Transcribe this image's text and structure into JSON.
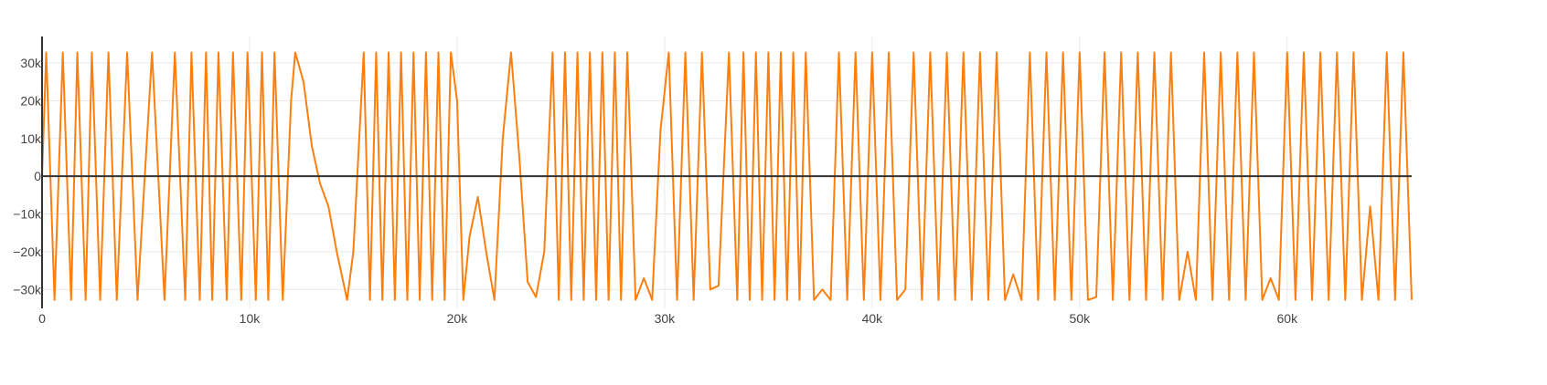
{
  "chart_data": {
    "type": "line",
    "title": "",
    "xlabel": "",
    "ylabel": "",
    "xlim": [
      0,
      66000
    ],
    "ylim": [
      -35000,
      37000
    ],
    "grid": true,
    "legend": "none",
    "x_ticks": [
      {
        "value": 0,
        "label": "0"
      },
      {
        "value": 10000,
        "label": "10k"
      },
      {
        "value": 20000,
        "label": "20k"
      },
      {
        "value": 30000,
        "label": "30k"
      },
      {
        "value": 40000,
        "label": "40k"
      },
      {
        "value": 50000,
        "label": "50k"
      },
      {
        "value": 60000,
        "label": "60k"
      }
    ],
    "y_ticks": [
      {
        "value": 30000,
        "label": "30k"
      },
      {
        "value": 20000,
        "label": "20k"
      },
      {
        "value": 10000,
        "label": "10k"
      },
      {
        "value": 0,
        "label": "0"
      },
      {
        "value": -10000,
        "label": "−10k"
      },
      {
        "value": -20000,
        "label": "−20k"
      },
      {
        "value": -30000,
        "label": "−30k"
      }
    ],
    "series": [
      {
        "color": "#ff7f0e",
        "amplitude": 32767,
        "points": [
          [
            0,
            0
          ],
          [
            200,
            32767
          ],
          [
            600,
            -32767
          ],
          [
            1000,
            32767
          ],
          [
            1400,
            -32767
          ],
          [
            1700,
            32767
          ],
          [
            2100,
            -32767
          ],
          [
            2400,
            32767
          ],
          [
            2800,
            -32767
          ],
          [
            3200,
            32767
          ],
          [
            3600,
            -32767
          ],
          [
            4100,
            32767
          ],
          [
            4600,
            -32767
          ],
          [
            5300,
            32767
          ],
          [
            5900,
            -32767
          ],
          [
            6400,
            32767
          ],
          [
            6900,
            -32767
          ],
          [
            7200,
            32767
          ],
          [
            7600,
            -32767
          ],
          [
            7900,
            32767
          ],
          [
            8200,
            -32767
          ],
          [
            8500,
            32767
          ],
          [
            8900,
            -32767
          ],
          [
            9200,
            32767
          ],
          [
            9600,
            -32767
          ],
          [
            9900,
            32767
          ],
          [
            10300,
            -32767
          ],
          [
            10600,
            32767
          ],
          [
            10900,
            -32767
          ],
          [
            11200,
            32767
          ],
          [
            11600,
            -32767
          ],
          [
            12000,
            20000
          ],
          [
            12200,
            32767
          ],
          [
            12600,
            25000
          ],
          [
            13000,
            8000
          ],
          [
            13400,
            -2000
          ],
          [
            13800,
            -8000
          ],
          [
            14200,
            -20000
          ],
          [
            14700,
            -32767
          ],
          [
            15000,
            -20000
          ],
          [
            15500,
            32767
          ],
          [
            15800,
            -32767
          ],
          [
            16100,
            32767
          ],
          [
            16400,
            -32767
          ],
          [
            16700,
            32767
          ],
          [
            17000,
            -32767
          ],
          [
            17300,
            32767
          ],
          [
            17600,
            -32767
          ],
          [
            17900,
            32767
          ],
          [
            18200,
            -32767
          ],
          [
            18500,
            32767
          ],
          [
            18800,
            -32767
          ],
          [
            19100,
            32767
          ],
          [
            19400,
            -32767
          ],
          [
            19700,
            32767
          ],
          [
            20000,
            20000
          ],
          [
            20300,
            -32767
          ],
          [
            20600,
            -16000
          ],
          [
            21000,
            -5500
          ],
          [
            21400,
            -20000
          ],
          [
            21800,
            -32767
          ],
          [
            22200,
            10000
          ],
          [
            22600,
            32767
          ],
          [
            23000,
            5000
          ],
          [
            23400,
            -28000
          ],
          [
            23800,
            -32000
          ],
          [
            24200,
            -20000
          ],
          [
            24600,
            32767
          ],
          [
            24900,
            -32767
          ],
          [
            25200,
            32767
          ],
          [
            25500,
            -32767
          ],
          [
            25800,
            32767
          ],
          [
            26100,
            -32767
          ],
          [
            26400,
            32767
          ],
          [
            26700,
            -32767
          ],
          [
            27000,
            32767
          ],
          [
            27300,
            -32767
          ],
          [
            27600,
            32767
          ],
          [
            27900,
            -32767
          ],
          [
            28200,
            32767
          ],
          [
            28600,
            -32767
          ],
          [
            29000,
            -27000
          ],
          [
            29400,
            -32767
          ],
          [
            29800,
            12000
          ],
          [
            30200,
            32767
          ],
          [
            30600,
            -32767
          ],
          [
            31000,
            32767
          ],
          [
            31400,
            -32767
          ],
          [
            31800,
            32767
          ],
          [
            32200,
            -30000
          ],
          [
            32600,
            -29000
          ],
          [
            33100,
            32767
          ],
          [
            33500,
            -32767
          ],
          [
            33800,
            32767
          ],
          [
            34100,
            -32767
          ],
          [
            34400,
            32767
          ],
          [
            34700,
            -32767
          ],
          [
            35000,
            32767
          ],
          [
            35300,
            -32767
          ],
          [
            35600,
            32767
          ],
          [
            35900,
            -32767
          ],
          [
            36200,
            32767
          ],
          [
            36500,
            -32767
          ],
          [
            36800,
            32767
          ],
          [
            37200,
            -32767
          ],
          [
            37600,
            -30000
          ],
          [
            38000,
            -32767
          ],
          [
            38400,
            32767
          ],
          [
            38800,
            -32767
          ],
          [
            39200,
            32767
          ],
          [
            39600,
            -32767
          ],
          [
            40000,
            32767
          ],
          [
            40400,
            -32767
          ],
          [
            40800,
            32767
          ],
          [
            41200,
            -32767
          ],
          [
            41600,
            -30000
          ],
          [
            42000,
            32767
          ],
          [
            42400,
            -32767
          ],
          [
            42800,
            32767
          ],
          [
            43200,
            -32767
          ],
          [
            43600,
            32767
          ],
          [
            44000,
            -32767
          ],
          [
            44400,
            32767
          ],
          [
            44800,
            -32767
          ],
          [
            45200,
            32767
          ],
          [
            45600,
            -32767
          ],
          [
            46000,
            32767
          ],
          [
            46400,
            -32767
          ],
          [
            46800,
            -26000
          ],
          [
            47200,
            -32767
          ],
          [
            47600,
            32767
          ],
          [
            48000,
            -32767
          ],
          [
            48400,
            32767
          ],
          [
            48800,
            -32767
          ],
          [
            49200,
            32767
          ],
          [
            49600,
            -32767
          ],
          [
            50000,
            32767
          ],
          [
            50400,
            -32767
          ],
          [
            50800,
            -32000
          ],
          [
            51200,
            32767
          ],
          [
            51600,
            -32767
          ],
          [
            52000,
            32767
          ],
          [
            52400,
            -32767
          ],
          [
            52800,
            32767
          ],
          [
            53200,
            -32767
          ],
          [
            53600,
            32767
          ],
          [
            54000,
            -32767
          ],
          [
            54400,
            32767
          ],
          [
            54800,
            -32767
          ],
          [
            55200,
            -20000
          ],
          [
            55600,
            -32767
          ],
          [
            56000,
            32767
          ],
          [
            56400,
            -32767
          ],
          [
            56800,
            32767
          ],
          [
            57200,
            -32767
          ],
          [
            57600,
            32767
          ],
          [
            58000,
            -32767
          ],
          [
            58400,
            32767
          ],
          [
            58800,
            -32767
          ],
          [
            59200,
            -27000
          ],
          [
            59600,
            -32767
          ],
          [
            60000,
            32767
          ],
          [
            60400,
            -32767
          ],
          [
            60800,
            32767
          ],
          [
            61200,
            -32767
          ],
          [
            61600,
            32767
          ],
          [
            62000,
            -32767
          ],
          [
            62400,
            32767
          ],
          [
            62800,
            -32767
          ],
          [
            63200,
            32767
          ],
          [
            63600,
            -32767
          ],
          [
            64000,
            -8000
          ],
          [
            64400,
            -32767
          ],
          [
            64800,
            32767
          ],
          [
            65200,
            -32767
          ],
          [
            65600,
            32767
          ],
          [
            66000,
            -32767
          ]
        ]
      }
    ]
  }
}
